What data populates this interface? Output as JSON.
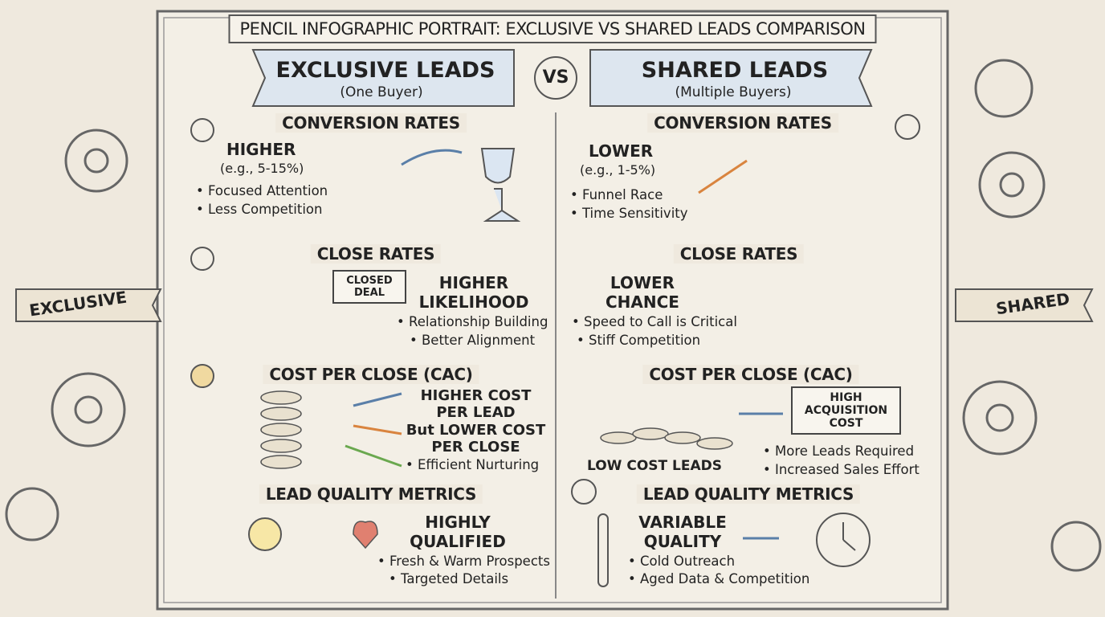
{
  "title": "PENCIL INFOGRAPHIC PORTRAIT: EXCLUSIVE VS SHARED LEADS COMPARISON",
  "vs": "VS",
  "side_labels": [
    "EXCLUSIVE",
    "SHARED"
  ],
  "columns": [
    {
      "heading": "EXCLUSIVE LEADS",
      "subheading": "(One Buyer)",
      "sections": [
        {
          "title": "CONVERSION RATES",
          "headline": "HIGHER",
          "detail": "(e.g., 5-15%)",
          "bullets": [
            "Focused Attention",
            "Less Competition"
          ]
        },
        {
          "title": "CLOSE RATES",
          "badge": "CLOSED DEAL",
          "headline": "HIGHER LIKELIHOOD",
          "bullets": [
            "Relationship Building",
            "Better Alignment"
          ]
        },
        {
          "title": "COST PER CLOSE (CAC)",
          "lines": [
            "HIGHER COST PER LEAD",
            "But LOWER COST PER CLOSE"
          ],
          "bullets": [
            "Efficient Nurturing"
          ]
        },
        {
          "title": "LEAD QUALITY METRICS",
          "headline": "HIGHLY QUALIFIED",
          "bullets": [
            "Fresh & Warm Prospects",
            "Targeted Details"
          ]
        }
      ]
    },
    {
      "heading": "SHARED LEADS",
      "subheading": "(Multiple Buyers)",
      "sections": [
        {
          "title": "CONVERSION RATES",
          "headline": "LOWER",
          "detail": "(e.g., 1-5%)",
          "bullets": [
            "Funnel Race",
            "Time Sensitivity"
          ]
        },
        {
          "title": "CLOSE RATES",
          "headline": "LOWER CHANCE",
          "bullets": [
            "Speed to Call is Critical",
            "Stiff Competition"
          ]
        },
        {
          "title": "COST PER CLOSE (CAC)",
          "badge": "HIGH ACQUISITION COST",
          "caption": "LOW COST LEADS",
          "bullets": [
            "More Leads Required",
            "Increased Sales Effort"
          ]
        },
        {
          "title": "LEAD QUALITY METRICS",
          "headline": "VARIABLE QUALITY",
          "bullets": [
            "Cold Outreach",
            "Aged Data & Competition"
          ]
        }
      ]
    }
  ]
}
